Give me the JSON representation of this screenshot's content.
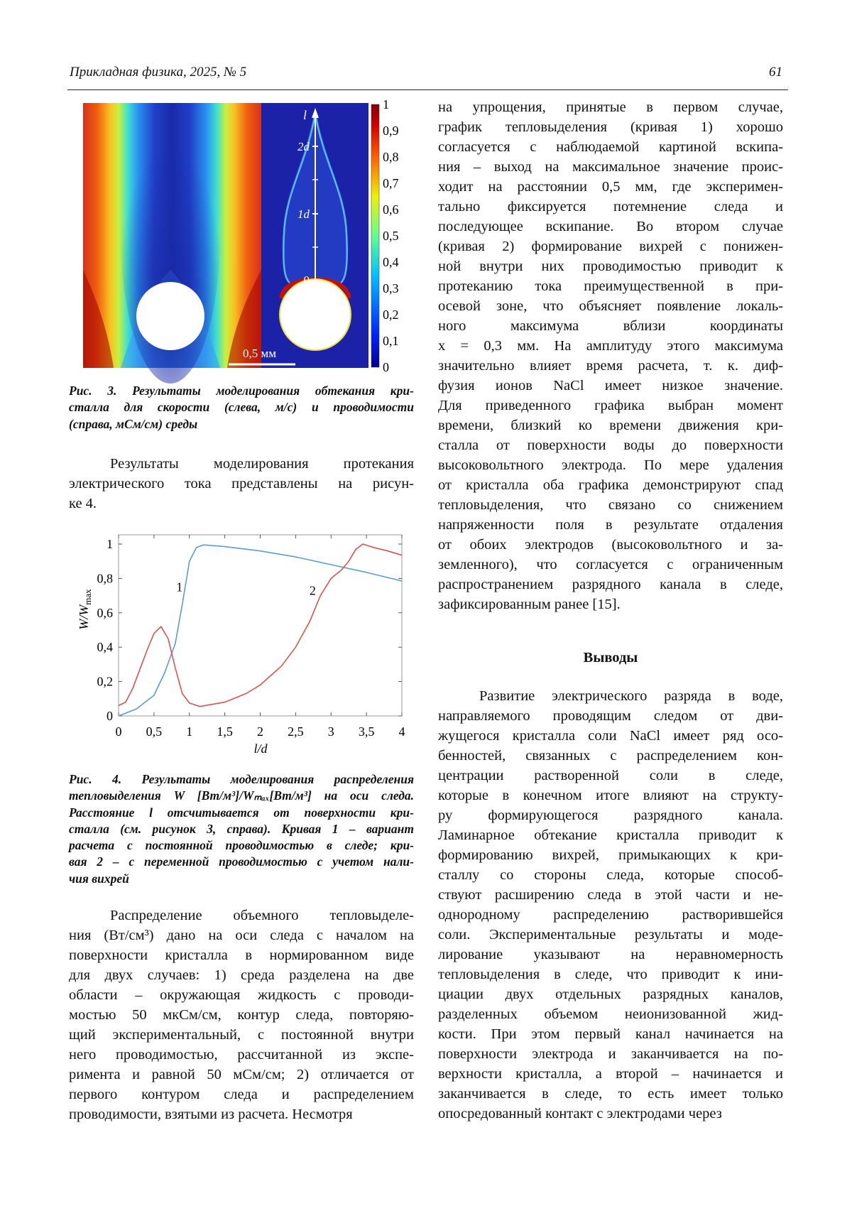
{
  "header": {
    "journal": "Прикладная физика, 2025, № 5",
    "page_number": "61"
  },
  "figure3": {
    "colorbar_ticks": [
      "1",
      "0,9",
      "0,8",
      "0,7",
      "0,6",
      "0,5",
      "0,4",
      "0,3",
      "0,2",
      "0,1",
      "0"
    ],
    "axis_label": "l",
    "axis_ticks": [
      "2d",
      "1d",
      "0"
    ],
    "scale_bar": "0,5 мм",
    "caption_lines": [
      "Рис. 3. Результаты моделирования обтекания кри-",
      "сталла для скорости (слева, м/с) и проводимости",
      "(справа, мСм/см) среды"
    ]
  },
  "left_paragraph_1": [
    "Результаты моделирования протекания",
    "электрического тока представлены на рисун-",
    "ке 4."
  ],
  "figure4": {
    "caption_lines": [
      "Рис. 4. Результаты моделирования распределения",
      "тепловыделения W [Вт/м³]/Wₘₐₓ[Вт/м³] на оси следа.",
      "Расстояние l отсчитывается от поверхности кри-",
      "сталла (см. рисунок 3, справа). Кривая 1 – вариант",
      "расчета с постоянной проводимостью в следе; кри-",
      "вая 2 – с переменной проводимостью с учетом нали-",
      "чия вихрей"
    ]
  },
  "chart_data": {
    "type": "line",
    "xlabel": "l/d",
    "ylabel": "W/Wmax",
    "xlim": [
      0,
      4
    ],
    "ylim": [
      0,
      1.05
    ],
    "x_ticks": [
      "0",
      "0,5",
      "1",
      "1,5",
      "2",
      "2,5",
      "3",
      "3,5",
      "4"
    ],
    "y_ticks": [
      "0",
      "0,2",
      "0,4",
      "0,6",
      "0,8",
      "1"
    ],
    "grid": false,
    "series": [
      {
        "name": "1",
        "color": "#5b9bd5",
        "x": [
          0,
          0.25,
          0.5,
          0.65,
          0.8,
          0.9,
          1.0,
          1.1,
          1.2,
          1.5,
          2.0,
          2.5,
          3.0,
          3.5,
          4.0
        ],
        "y": [
          0,
          0.04,
          0.12,
          0.25,
          0.42,
          0.65,
          0.9,
          0.98,
          0.995,
          0.985,
          0.96,
          0.925,
          0.88,
          0.835,
          0.785
        ],
        "label_at": [
          0.86,
          0.75
        ]
      },
      {
        "name": "2",
        "color": "#d9534f",
        "x": [
          0,
          0.1,
          0.2,
          0.3,
          0.4,
          0.5,
          0.6,
          0.7,
          0.8,
          0.9,
          1.0,
          1.15,
          1.5,
          1.8,
          2.0,
          2.3,
          2.5,
          2.7,
          2.85,
          3.0,
          3.15,
          3.25,
          3.35,
          3.45,
          3.6,
          3.8,
          4.0
        ],
        "y": [
          0.06,
          0.08,
          0.16,
          0.27,
          0.38,
          0.48,
          0.52,
          0.45,
          0.28,
          0.13,
          0.075,
          0.055,
          0.08,
          0.13,
          0.18,
          0.29,
          0.4,
          0.55,
          0.7,
          0.8,
          0.85,
          0.9,
          0.97,
          1.0,
          0.98,
          0.96,
          0.935
        ],
        "label_at": [
          2.74,
          0.73
        ]
      }
    ]
  },
  "left_paragraph_2": [
    "Распределение объемного тепловыделе-",
    "ния (Вт/см³) дано на оси следа с началом на",
    "поверхности кристалла в нормированном виде",
    "для двух случаев: 1) среда разделена на две",
    "области – окружающая жидкость с проводи-",
    "мостью 50 мкСм/см, контур следа, повторяю-",
    "щий экспериментальный, с постоянной внутри",
    "него проводимостью, рассчитанной из экспе-",
    "римента и равной 50 мСм/см; 2) отличается от",
    "первого контуром следа и распределением",
    "проводимости, взятыми из расчета. Несмотря"
  ],
  "right_paragraph_1": [
    "на упрощения, принятые в первом случае,",
    "график тепловыделения (кривая 1) хорошо",
    "согласуется с наблюдаемой картиной вскипа-",
    "ния – выход на максимальное значение проис-",
    "ходит на расстоянии 0,5 мм, где эксперимен-",
    "тально фиксируется потемнение следа и",
    "последующее вскипание. Во втором случае",
    "(кривая 2) формирование вихрей с понижен-",
    "ной внутри них проводимостью приводит к",
    "протеканию тока преимущественной в при-",
    "осевой зоне, что объясняет появление локаль-",
    "ного максимума вблизи координаты",
    "x = 0,3 мм. На амплитуду этого максимума",
    "значительно влияет время расчета, т. к. диф-",
    "фузия ионов NaCl имеет низкое значение.",
    "Для приведенного графика выбран момент",
    "времени, близкий ко времени движения кри-",
    "сталла от поверхности воды до поверхности",
    "высоковольтного электрода. По мере удаления",
    "от кристалла оба графика демонстрируют спад",
    "тепловыделения, что связано со снижением",
    "напряженности поля в результате отдаления",
    "от обоих электродов (высоковольтного и за-",
    "земленного), что согласуется с ограниченным",
    "распространением разрядного канала в следе,",
    "зафиксированным ранее [15]."
  ],
  "conclusions": {
    "heading": "Выводы",
    "lines": [
      "Развитие электрического разряда в воде,",
      "направляемого проводящим следом от дви-",
      "жущегося кристалла соли NaCl имеет ряд осо-",
      "бенностей, связанных с распределением кон-",
      "центрации растворенной соли в следе,",
      "которые в конечном итоге влияют на структу-",
      "ру формирующегося разрядного канала.",
      "Ламинарное обтекание кристалла приводит к",
      "формированию вихрей, примыкающих к кри-",
      "сталлу со стороны следа, которые способ-",
      "ствуют расширению следа в этой части и не-",
      "однородному распределению растворившейся",
      "соли. Экспериментальные результаты и моде-",
      "лирование указывают на неравномерность",
      "тепловыделения в следе, что приводит к ини-",
      "циации двух отдельных разрядных каналов,",
      "разделенных объемом неионизованной жид-",
      "кости. При этом первый канал начинается на",
      "поверхности электрода и заканчивается на по-",
      "верхности кристалла, а второй – начинается и",
      "заканчивается в следе, то есть имеет только",
      "опосредованный контакт с электродами через"
    ]
  }
}
